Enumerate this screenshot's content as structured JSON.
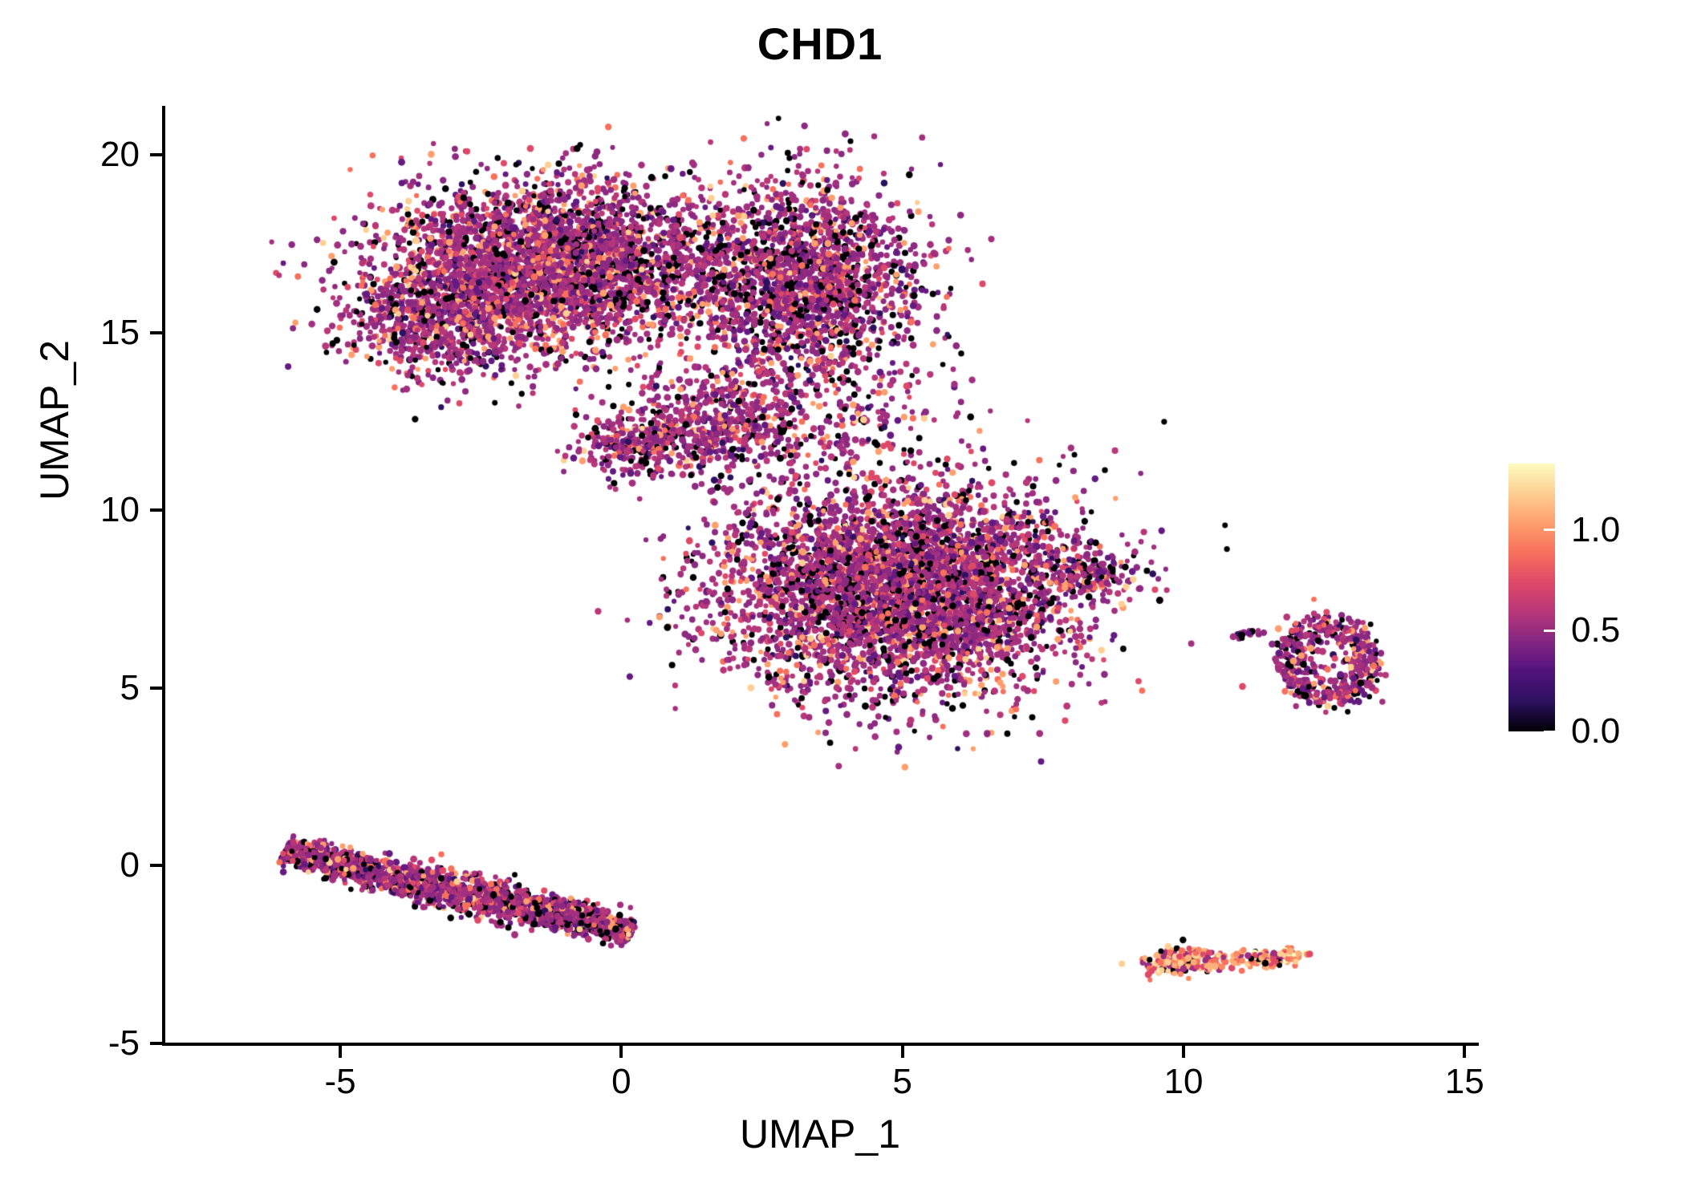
{
  "chart_data": {
    "type": "scatter",
    "title": "CHD1",
    "xlabel": "UMAP_1",
    "ylabel": "UMAP_2",
    "xlim": [
      -8.14,
      15.21
    ],
    "ylim": [
      -4.98,
      21.38
    ],
    "x_ticks": [
      -5,
      0,
      5,
      10,
      15
    ],
    "x_tick_labels": [
      "-5",
      "0",
      "5",
      "10",
      "15"
    ],
    "y_ticks": [
      -5,
      0,
      5,
      10,
      15,
      20
    ],
    "y_tick_labels": [
      "-5",
      "0",
      "5",
      "10",
      "15",
      "20"
    ],
    "grid": false,
    "point_radius_px": 3.5,
    "colorbar": {
      "tick_labels": [
        "1.0",
        "0.5",
        "0.0"
      ],
      "tick_values": [
        1.0,
        0.5,
        0.0
      ],
      "vmin": 0.0,
      "vmax": 1.33,
      "colors_top_to_bottom": [
        "#fcfdbf",
        "#fecf92",
        "#fe9f6d",
        "#f7705c",
        "#de4968",
        "#b73779",
        "#822681",
        "#51127c",
        "#2c115f",
        "#000004"
      ]
    },
    "palettes": {
      "main": {
        "colors": [
          "#000004",
          "#2c115f",
          "#641a80",
          "#8c2981",
          "#a3307e",
          "#b73779",
          "#de4968",
          "#f7705c",
          "#fe9f6d",
          "#fecf92"
        ],
        "weights": [
          0.15,
          0.02,
          0.08,
          0.2,
          0.22,
          0.15,
          0.05,
          0.05,
          0.06,
          0.02
        ]
      },
      "warm": {
        "colors": [
          "#000004",
          "#9c2e7f",
          "#de4968",
          "#f7705c",
          "#fb8861",
          "#feb078",
          "#fecf92",
          "#fcfdbf"
        ],
        "weights": [
          0.1,
          0.12,
          0.1,
          0.15,
          0.18,
          0.2,
          0.1,
          0.05
        ]
      }
    },
    "clusters": [
      {
        "name": "upper-blob-left",
        "shape": "gaussian",
        "cx": -1.3,
        "cy": 16.9,
        "sx": 1.5,
        "sy": 1.15,
        "n": 3200,
        "palette": "main"
      },
      {
        "name": "upper-blob-lower-left",
        "shape": "gaussian",
        "cx": -3.2,
        "cy": 15.3,
        "sx": 0.9,
        "sy": 0.8,
        "n": 700,
        "palette": "main"
      },
      {
        "name": "upper-blob-right",
        "shape": "gaussian",
        "cx": 3.2,
        "cy": 16.4,
        "sx": 1.05,
        "sy": 1.45,
        "n": 1900,
        "palette": "main"
      },
      {
        "name": "upper-blob-neck",
        "shape": "gaussian",
        "cx": 0.3,
        "cy": 11.8,
        "sx": 0.55,
        "sy": 0.4,
        "n": 260,
        "palette": "main"
      },
      {
        "name": "mid-trail",
        "shape": "gaussian",
        "cx": 1.8,
        "cy": 12.5,
        "sx": 0.85,
        "sy": 0.75,
        "n": 480,
        "palette": "main"
      },
      {
        "name": "sparse-bridge",
        "shape": "gaussian",
        "cx": 3.9,
        "cy": 12.4,
        "sx": 1.15,
        "sy": 0.8,
        "n": 170,
        "palette": "main"
      },
      {
        "name": "center-blob",
        "shape": "gaussian",
        "cx": 5.0,
        "cy": 7.8,
        "sx": 1.65,
        "sy": 1.5,
        "n": 4300,
        "palette": "main"
      },
      {
        "name": "center-blob-tip",
        "shape": "gaussian",
        "cx": 8.35,
        "cy": 8.15,
        "sx": 0.45,
        "sy": 0.28,
        "n": 130,
        "palette": "main"
      },
      {
        "name": "center-outlier",
        "shape": "gaussian",
        "cx": 6.55,
        "cy": 3.65,
        "sx": 0.05,
        "sy": 0.05,
        "n": 2,
        "palette": "main"
      },
      {
        "name": "bottom-left-streak",
        "shape": "streak",
        "cx": -2.9,
        "cy": -0.72,
        "sx": 3.3,
        "sy": 0.27,
        "rot_deg": -20.5,
        "n": 2100,
        "palette": "main"
      },
      {
        "name": "right-ring",
        "shape": "ring",
        "cx": 12.55,
        "cy": 5.75,
        "r": 0.72,
        "rw": 0.17,
        "xs": 1.0,
        "ys": 1.35,
        "n": 420,
        "palette": "main"
      },
      {
        "name": "right-ring-fill",
        "shape": "gaussian",
        "cx": 12.5,
        "cy": 5.8,
        "sx": 0.45,
        "sy": 0.6,
        "n": 70,
        "palette": "main"
      },
      {
        "name": "right-ring-satellite",
        "shape": "gaussian",
        "cx": 11.15,
        "cy": 6.55,
        "sx": 0.18,
        "sy": 0.08,
        "n": 16,
        "palette": "main"
      },
      {
        "name": "bottom-right-left-clump",
        "shape": "gaussian",
        "cx": 10.0,
        "cy": -2.7,
        "sx": 0.38,
        "sy": 0.17,
        "n": 180,
        "palette": "warm"
      },
      {
        "name": "bottom-right-bridge",
        "shape": "gaussian",
        "cx": 10.75,
        "cy": -2.72,
        "sx": 0.18,
        "sy": 0.07,
        "n": 10,
        "palette": "warm"
      },
      {
        "name": "bottom-right-mid-clump",
        "shape": "gaussian",
        "cx": 11.35,
        "cy": -2.62,
        "sx": 0.28,
        "sy": 0.12,
        "n": 80,
        "palette": "warm"
      },
      {
        "name": "bottom-right-right-clump",
        "shape": "gaussian",
        "cx": 11.85,
        "cy": -2.55,
        "sx": 0.18,
        "sy": 0.1,
        "n": 45,
        "palette": "warm"
      }
    ]
  }
}
